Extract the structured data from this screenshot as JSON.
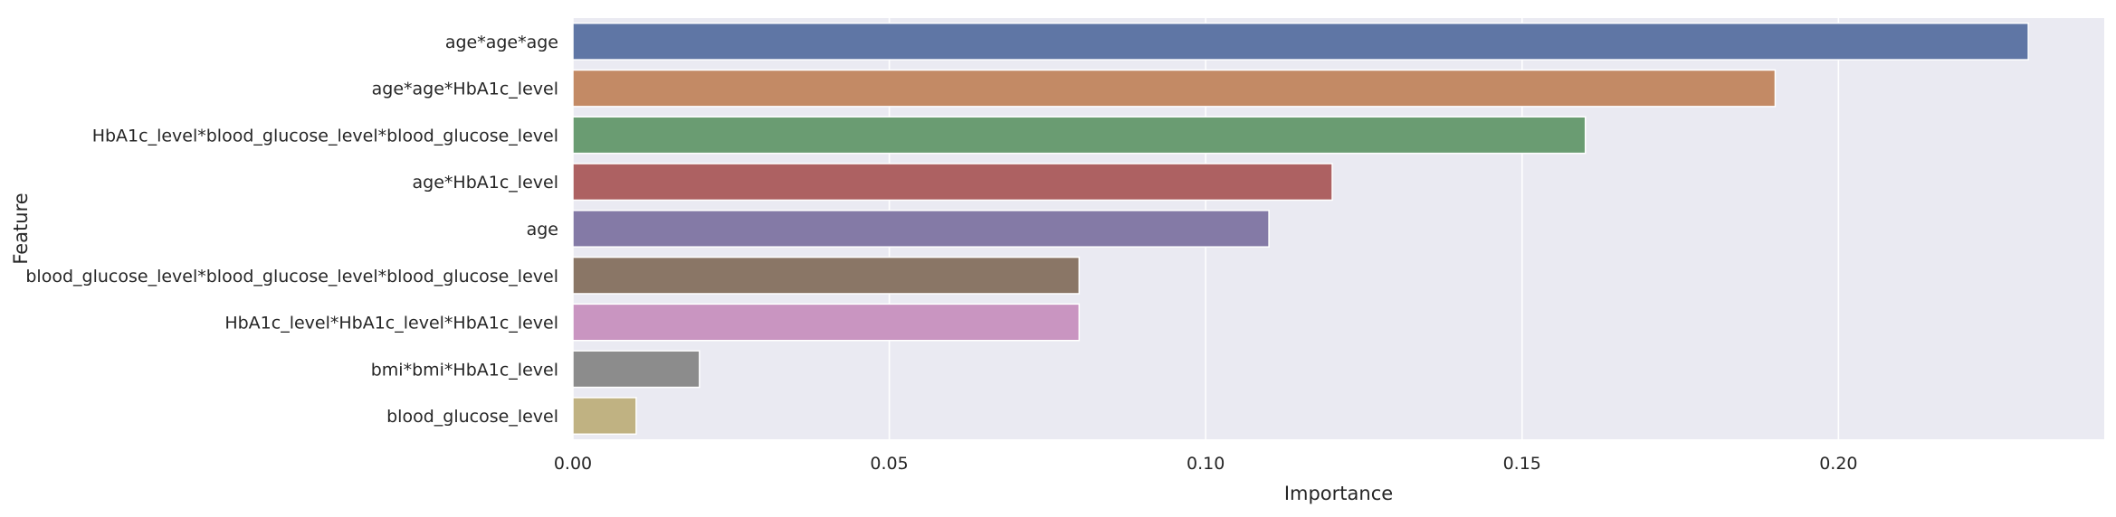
{
  "chart_data": {
    "type": "bar",
    "orientation": "horizontal",
    "xlabel": "Importance",
    "ylabel": "Feature",
    "xlim": [
      0,
      0.242
    ],
    "xticks": [
      0.0,
      0.05,
      0.1,
      0.15,
      0.2
    ],
    "xtick_labels": [
      "0.00",
      "0.05",
      "0.10",
      "0.15",
      "0.20"
    ],
    "grid": true,
    "categories": [
      "age*age*age",
      "age*age*HbA1c_level",
      "HbA1c_level*blood_glucose_level*blood_glucose_level",
      "age*HbA1c_level",
      "age",
      "blood_glucose_level*blood_glucose_level*blood_glucose_level",
      "HbA1c_level*HbA1c_level*HbA1c_level",
      "bmi*bmi*HbA1c_level",
      "blood_glucose_level"
    ],
    "values": [
      0.23,
      0.19,
      0.16,
      0.12,
      0.11,
      0.08,
      0.08,
      0.02,
      0.01
    ],
    "colors": [
      "#5f76a5",
      "#c38a65",
      "#6a9c72",
      "#ad6162",
      "#847aa6",
      "#8a7666",
      "#c995c1",
      "#8c8c8c",
      "#c0b282"
    ],
    "background_color": "#eaeaf2",
    "grid_color": "#ffffff"
  }
}
